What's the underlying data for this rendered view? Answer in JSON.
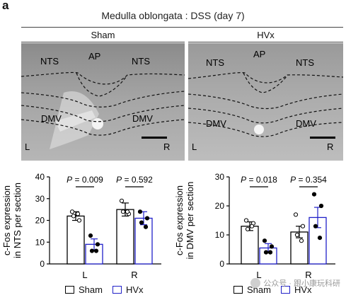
{
  "figure": {
    "panel_letter": "a",
    "title": "Medulla oblongata : DSS (day 7)"
  },
  "micrographs": [
    {
      "condition": "Sham",
      "labels": {
        "nts_left": "NTS",
        "ap": "AP",
        "nts_right": "NTS",
        "dmv_left": "DMV",
        "dmv_right": "DMV",
        "left": "L",
        "right": "R"
      }
    },
    {
      "condition": "HVx",
      "labels": {
        "nts_left": "NTS",
        "ap": "AP",
        "nts_right": "NTS",
        "dmv_left": "DMV",
        "dmv_right": "DMV",
        "left": "L",
        "right": "R"
      }
    }
  ],
  "colors": {
    "sham": "#000000",
    "hvx": "#2020c8"
  },
  "legend": {
    "sham": "Sham",
    "hvx": "HVx"
  },
  "watermark": "公众号 · 跟小康玩科研",
  "chart_data": [
    {
      "type": "bar",
      "ylabel_line1": "c-Fos expression",
      "ylabel_line2": "in NTS per section",
      "categories": [
        "L",
        "R"
      ],
      "ylim": [
        0,
        40
      ],
      "yticks": [
        0,
        10,
        20,
        30,
        40
      ],
      "series": [
        {
          "name": "Sham",
          "values": [
            22,
            25
          ],
          "sem": [
            2,
            3
          ],
          "points": [
            [
              24,
              20,
              22,
              23
            ],
            [
              29,
              23,
              24,
              24
            ]
          ]
        },
        {
          "name": "HVx",
          "values": [
            9,
            21
          ],
          "sem": [
            2.5,
            3
          ],
          "points": [
            [
              13,
              9,
              6,
              6
            ],
            [
              24,
              21,
              19,
              17
            ]
          ]
        }
      ],
      "annotations": [
        {
          "category": "L",
          "text": "P = 0.009"
        },
        {
          "category": "R",
          "text": "P = 0.592"
        }
      ]
    },
    {
      "type": "bar",
      "ylabel_line1": "c-Fos expression",
      "ylabel_line2": "in DMV per section",
      "categories": [
        "L",
        "R"
      ],
      "ylim": [
        0,
        30
      ],
      "yticks": [
        0,
        10,
        20,
        30
      ],
      "series": [
        {
          "name": "Sham",
          "values": [
            13,
            11
          ],
          "sem": [
            1.5,
            2
          ],
          "points": [
            [
              15,
              14,
              12,
              13
            ],
            [
              17,
              13,
              10,
              8
            ]
          ]
        },
        {
          "name": "HVx",
          "values": [
            5.5,
            16
          ],
          "sem": [
            1.5,
            3.5
          ],
          "points": [
            [
              8,
              6,
              4,
              4
            ],
            [
              24,
              20,
              13,
              9
            ]
          ]
        }
      ],
      "annotations": [
        {
          "category": "L",
          "text": "P = 0.018"
        },
        {
          "category": "R",
          "text": "P = 0.354"
        }
      ]
    }
  ]
}
